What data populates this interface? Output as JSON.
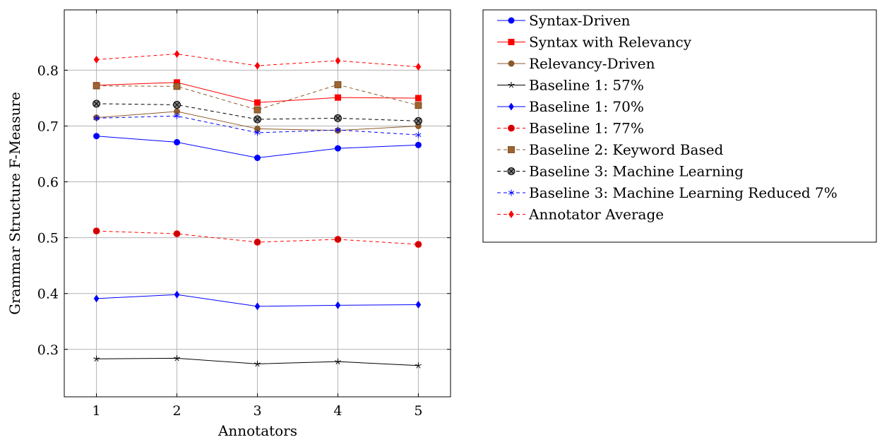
{
  "chart_data": {
    "type": "line",
    "xlabel": "Annotators",
    "ylabel": "Grammar Structure F-Measure",
    "x": [
      1,
      2,
      3,
      4,
      5
    ],
    "xlim": [
      0.6,
      5.4
    ],
    "ylim": [
      0.215,
      0.908
    ],
    "xticks": [
      "1",
      "2",
      "3",
      "4",
      "5"
    ],
    "yticks": [
      "0.3",
      "0.4",
      "0.5",
      "0.6",
      "0.7",
      "0.8"
    ],
    "ytick_values": [
      0.3,
      0.4,
      0.5,
      0.6,
      0.7,
      0.8
    ],
    "grid": true,
    "legend_position": "outside-right-top",
    "series": [
      {
        "name": "Syntax-Driven",
        "values": [
          0.682,
          0.671,
          0.643,
          0.66,
          0.666
        ],
        "color": "#0000ff",
        "dash": false,
        "marker": "circle"
      },
      {
        "name": "Syntax with Relevancy",
        "values": [
          0.773,
          0.778,
          0.742,
          0.751,
          0.75
        ],
        "color": "#ff0000",
        "dash": false,
        "marker": "square"
      },
      {
        "name": "Relevancy-Driven",
        "values": [
          0.715,
          0.726,
          0.695,
          0.692,
          0.7
        ],
        "color": "#8b5a2b",
        "dash": false,
        "marker": "circle"
      },
      {
        "name": "Baseline 1: 57%",
        "values": [
          0.283,
          0.284,
          0.274,
          0.278,
          0.271
        ],
        "color": "#000000",
        "dash": false,
        "marker": "star"
      },
      {
        "name": "Baseline 1: 70%",
        "values": [
          0.391,
          0.398,
          0.377,
          0.379,
          0.38
        ],
        "color": "#0000ff",
        "dash": false,
        "marker": "diamond"
      },
      {
        "name": "Baseline 1: 77%",
        "values": [
          0.512,
          0.507,
          0.492,
          0.497,
          0.488
        ],
        "color": "#ff0000",
        "dash": true,
        "marker": "circle-dark"
      },
      {
        "name": "Baseline 2: Keyword Based",
        "values": [
          0.772,
          0.771,
          0.729,
          0.774,
          0.737
        ],
        "color": "#8b5a2b",
        "dash": true,
        "marker": "square-brown"
      },
      {
        "name": "Baseline 3: Machine Learning",
        "values": [
          0.74,
          0.738,
          0.712,
          0.714,
          0.709
        ],
        "color": "#000000",
        "dash": true,
        "marker": "otimes"
      },
      {
        "name": "Baseline 3: Machine Learning Reduced 7%",
        "values": [
          0.714,
          0.718,
          0.688,
          0.693,
          0.684
        ],
        "color": "#0000ff",
        "dash": true,
        "marker": "asterisk"
      },
      {
        "name": "Annotator Average",
        "values": [
          0.819,
          0.829,
          0.808,
          0.817,
          0.806
        ],
        "color": "#ff0000",
        "dash": true,
        "marker": "diamond"
      }
    ]
  }
}
